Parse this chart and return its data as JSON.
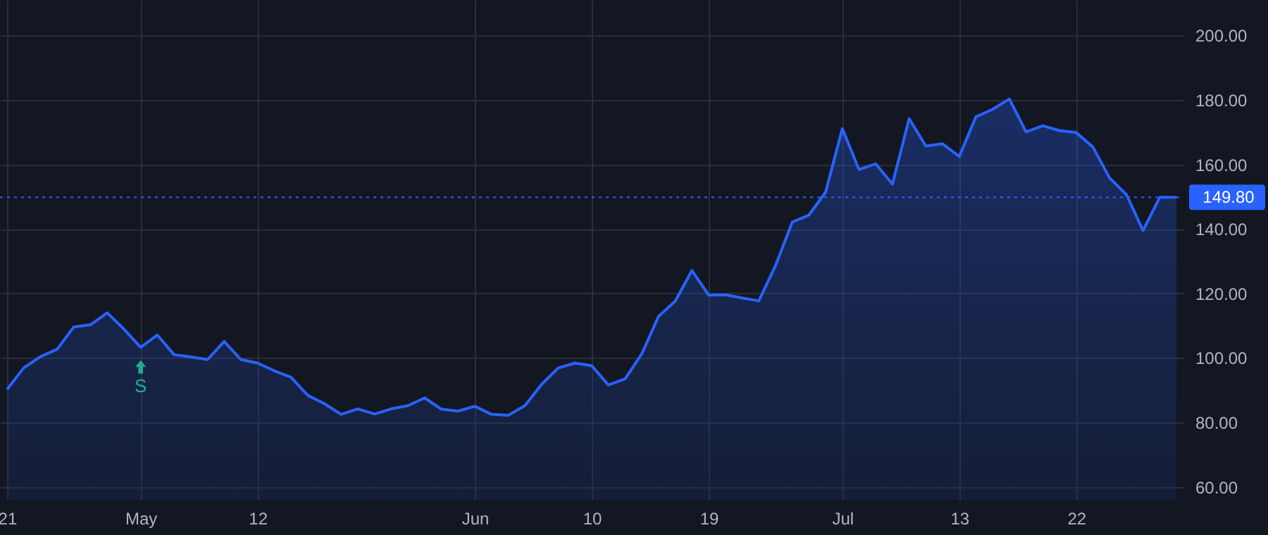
{
  "chart_data": {
    "type": "area",
    "categories": [
      "21",
      null,
      null,
      null,
      null,
      null,
      null,
      null,
      "May",
      null,
      null,
      null,
      null,
      null,
      null,
      "12",
      null,
      null,
      null,
      null,
      null,
      null,
      null,
      null,
      null,
      null,
      null,
      null,
      "Jun",
      null,
      null,
      null,
      null,
      null,
      null,
      "10",
      null,
      null,
      null,
      null,
      null,
      null,
      "19",
      null,
      null,
      null,
      null,
      null,
      null,
      null,
      "Jul",
      null,
      null,
      null,
      null,
      null,
      null,
      "13",
      null,
      null,
      null,
      null,
      null,
      null,
      "22",
      null,
      null,
      null,
      null,
      null,
      null
    ],
    "series": [
      {
        "color": "#2962ff",
        "values": [
          90.2,
          96.9,
          100.4,
          102.7,
          109.6,
          110.3,
          114,
          108.9,
          103.3,
          107.1,
          101,
          100.3,
          99.5,
          105.1,
          99.5,
          98.4,
          96,
          94,
          88.4,
          85.8,
          82.5,
          84.2,
          82.6,
          84.2,
          85.2,
          87.6,
          84.1,
          83.5,
          85,
          82.5,
          82.2,
          85.2,
          91.8,
          96.9,
          98.4,
          97.6,
          91.6,
          93.5,
          101.3,
          112.9,
          117.6,
          127.1,
          119.5,
          119.6,
          118.6,
          117.7,
          128.6,
          142.1,
          144.3,
          151.4,
          171.1,
          158.4,
          160.2,
          153.9,
          174.2,
          165.7,
          166.4,
          162.5,
          174.8,
          177.1,
          180.3,
          170.1,
          172,
          170.5,
          169.9,
          165.4,
          155.8,
          150.7,
          139.5,
          149.8,
          149.8
        ]
      }
    ],
    "ylim": [
      56,
      211
    ],
    "yticks": [
      {
        "value": 60,
        "label": "60.00"
      },
      {
        "value": 80,
        "label": "80.00"
      },
      {
        "value": 100,
        "label": "100.00"
      },
      {
        "value": 120,
        "label": "120.00"
      },
      {
        "value": 140,
        "label": "140.00"
      },
      {
        "value": 160,
        "label": "160.00"
      },
      {
        "value": 180,
        "label": "180.00"
      },
      {
        "value": 200,
        "label": "200.00"
      }
    ],
    "ref_lines": [
      {
        "axis": "y",
        "value": 149.8,
        "label": "149.80",
        "color": "#2962ff",
        "line_style": "dotted"
      }
    ],
    "annotations": [
      {
        "text": "S",
        "x": "May",
        "y": 103.3
      }
    ],
    "grid": true
  }
}
